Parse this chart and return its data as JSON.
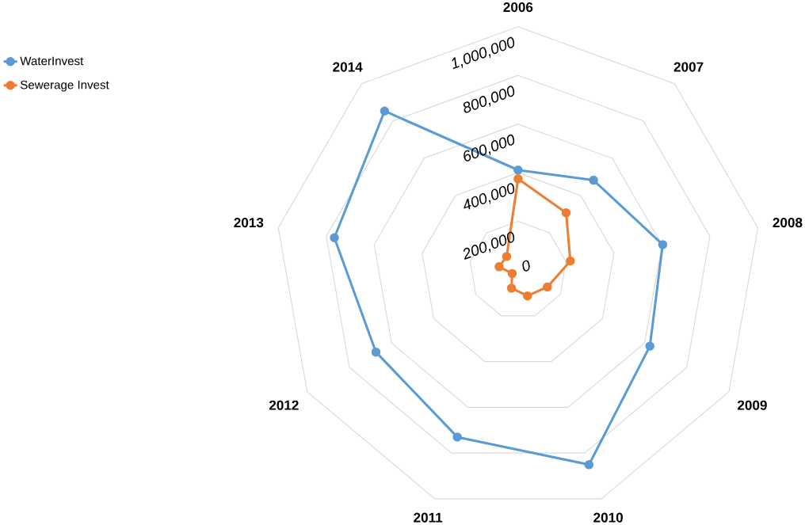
{
  "chart_data": {
    "type": "radar",
    "categories": [
      "2006",
      "2007",
      "2008",
      "2009",
      "2010",
      "2011",
      "2012",
      "2013",
      "2014"
    ],
    "series": [
      {
        "name": "WaterInvest",
        "color": "#5b9bd5",
        "values": [
          411000,
          482000,
          603000,
          625000,
          851000,
          730000,
          674000,
          766000,
          853000
        ]
      },
      {
        "name": "Sewerage Invest",
        "color": "#ed7d31",
        "values": [
          375000,
          307000,
          218000,
          139000,
          113000,
          79000,
          28000,
          79000,
          73000
        ]
      }
    ],
    "ylim": [
      0,
      1000000
    ],
    "yticks": [
      {
        "value": 0,
        "label": "0"
      },
      {
        "value": 200000,
        "label": "200,000"
      },
      {
        "value": 400000,
        "label": "400,000"
      },
      {
        "value": 600000,
        "label": "600,000"
      },
      {
        "value": 800000,
        "label": "800,000"
      },
      {
        "value": 1000000,
        "label": "1,000,000"
      }
    ],
    "grid": true,
    "legend": "top left",
    "marker": "circle"
  }
}
